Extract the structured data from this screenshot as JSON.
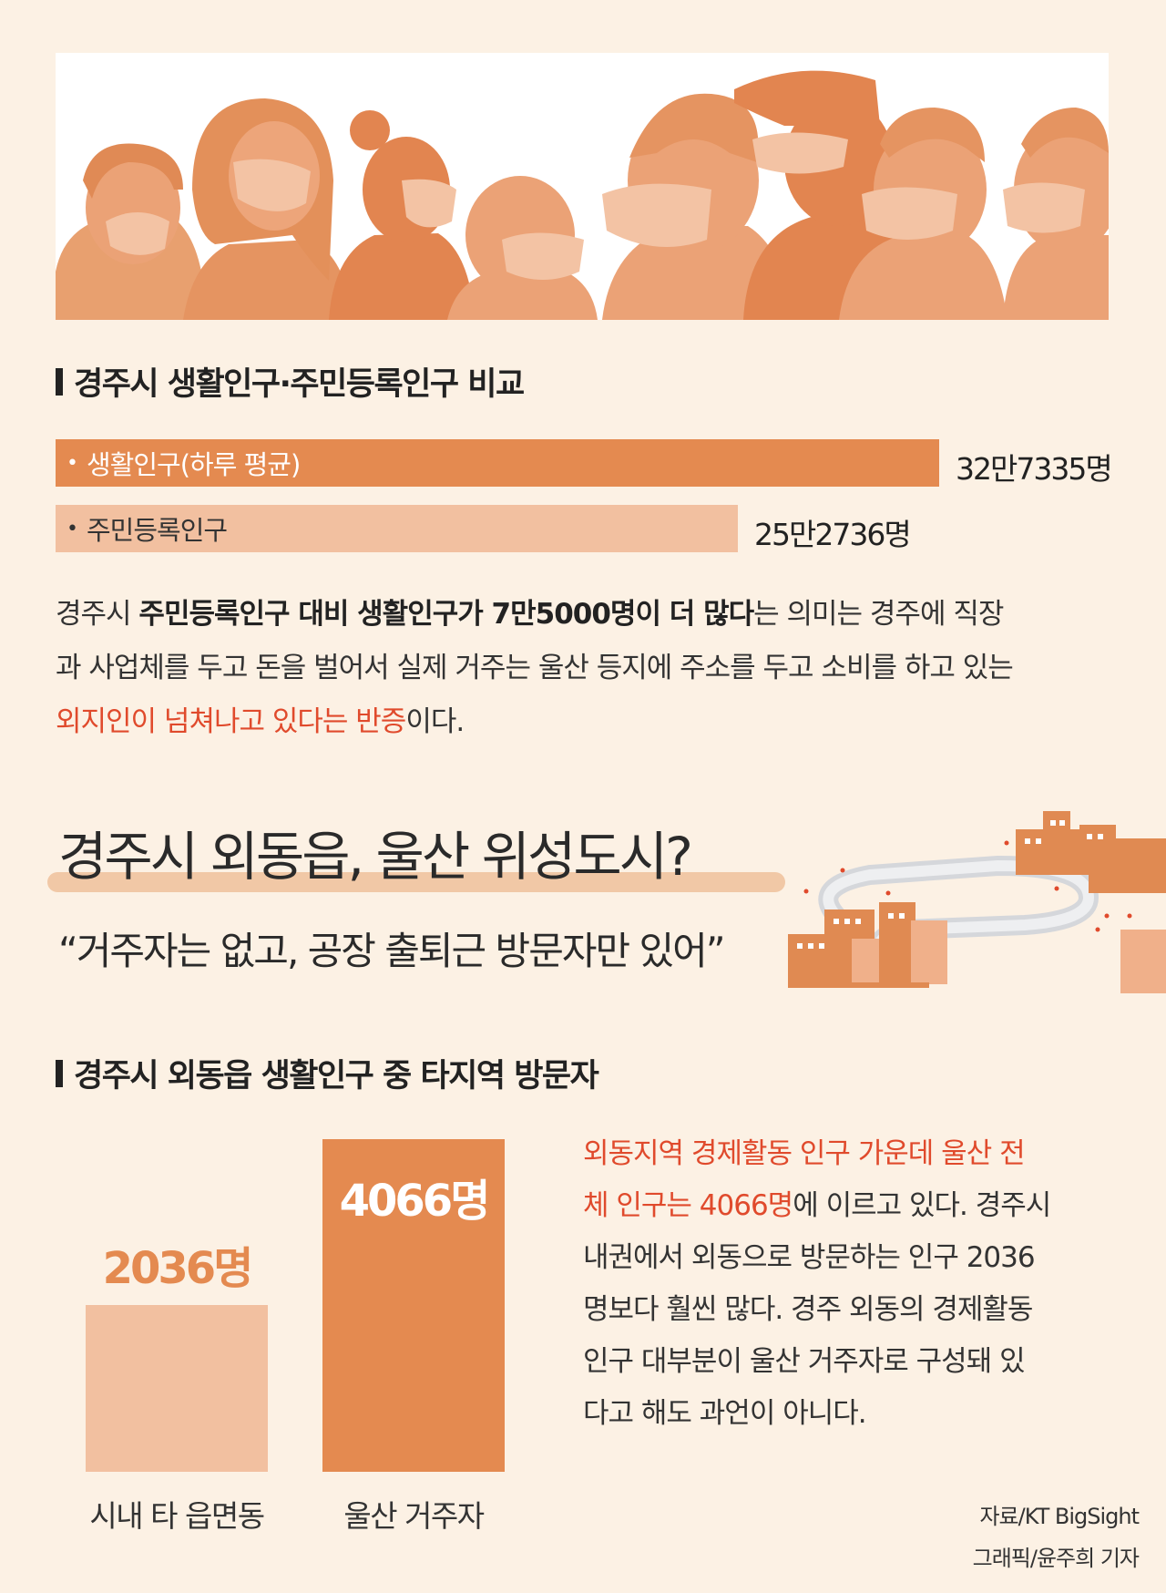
{
  "section1": {
    "heading": "경주시 생활인구·주민등록인구 비교",
    "bars": [
      {
        "label": "생활인구(하루 평균)",
        "value_text": "32만7335명",
        "value": 327335,
        "color": "#e48a50",
        "text_color": "#ffffff"
      },
      {
        "label": "주민등록인구",
        "value_text": "25만2736명",
        "value": 252736,
        "color": "#f2c0a0",
        "text_color": "#333333"
      }
    ],
    "paragraph": {
      "p1": "경주시 ",
      "b1": "주민등록인구 대비 생활인구가 7만5000명이 더 많다",
      "p2": "는 의미는 경주에 직장",
      "line2": "과 사업체를 두고 돈을 벌어서 실제 거주는 울산 등지에 주소를 두고 소비를 하고 있는",
      "r1": "외지인이 넘쳐나고 있다는 반증",
      "p3": "이다."
    }
  },
  "section2": {
    "title": "경주시 외동읍, 울산 위성도시?",
    "subtitle": "“거주자는 없고, 공장 출퇴근 방문자만 있어”"
  },
  "section3": {
    "heading": "경주시 외동읍 생활인구 중 타지역 방문자",
    "text": {
      "r1": "외동지역 경제활동 인구 가운데 울산 전",
      "r2": "체 인구는 4066명",
      "l2": "에 이르고 있다. 경주시",
      "l3": "내권에서 외동으로 방문하는 인구 2036",
      "l4": "명보다 훨씬 많다. 경주 외동의 경제활동",
      "l5": "인구 대부분이 울산 거주자로 구성돼 있",
      "l6": "다고 해도 과언이 아니다."
    }
  },
  "chart_data": [
    {
      "type": "bar",
      "orientation": "horizontal",
      "title": "경주시 생활인구·주민등록인구 비교",
      "categories": [
        "생활인구(하루 평균)",
        "주민등록인구"
      ],
      "values": [
        327335,
        252736
      ],
      "value_labels": [
        "32만7335명",
        "25만2736명"
      ],
      "colors": [
        "#e48a50",
        "#f2c0a0"
      ]
    },
    {
      "type": "bar",
      "orientation": "vertical",
      "title": "경주시 외동읍 생활인구 중 타지역 방문자",
      "categories": [
        "시내 타 읍면동",
        "울산 거주자"
      ],
      "values": [
        2036,
        4066
      ],
      "value_labels": [
        "2036명",
        "4066명"
      ],
      "colors": [
        "#f2c0a0",
        "#e48a50"
      ],
      "label_colors": [
        "#e48a50",
        "#ffffff"
      ]
    }
  ],
  "credits": {
    "source": "자료/KT BigSight",
    "graphic": "그래픽/윤주희 기자"
  },
  "colors": {
    "background": "#fcf1e4",
    "accent_dark": "#e48a50",
    "accent_light": "#f2c0a0",
    "highlight_text": "#e04a2c"
  }
}
